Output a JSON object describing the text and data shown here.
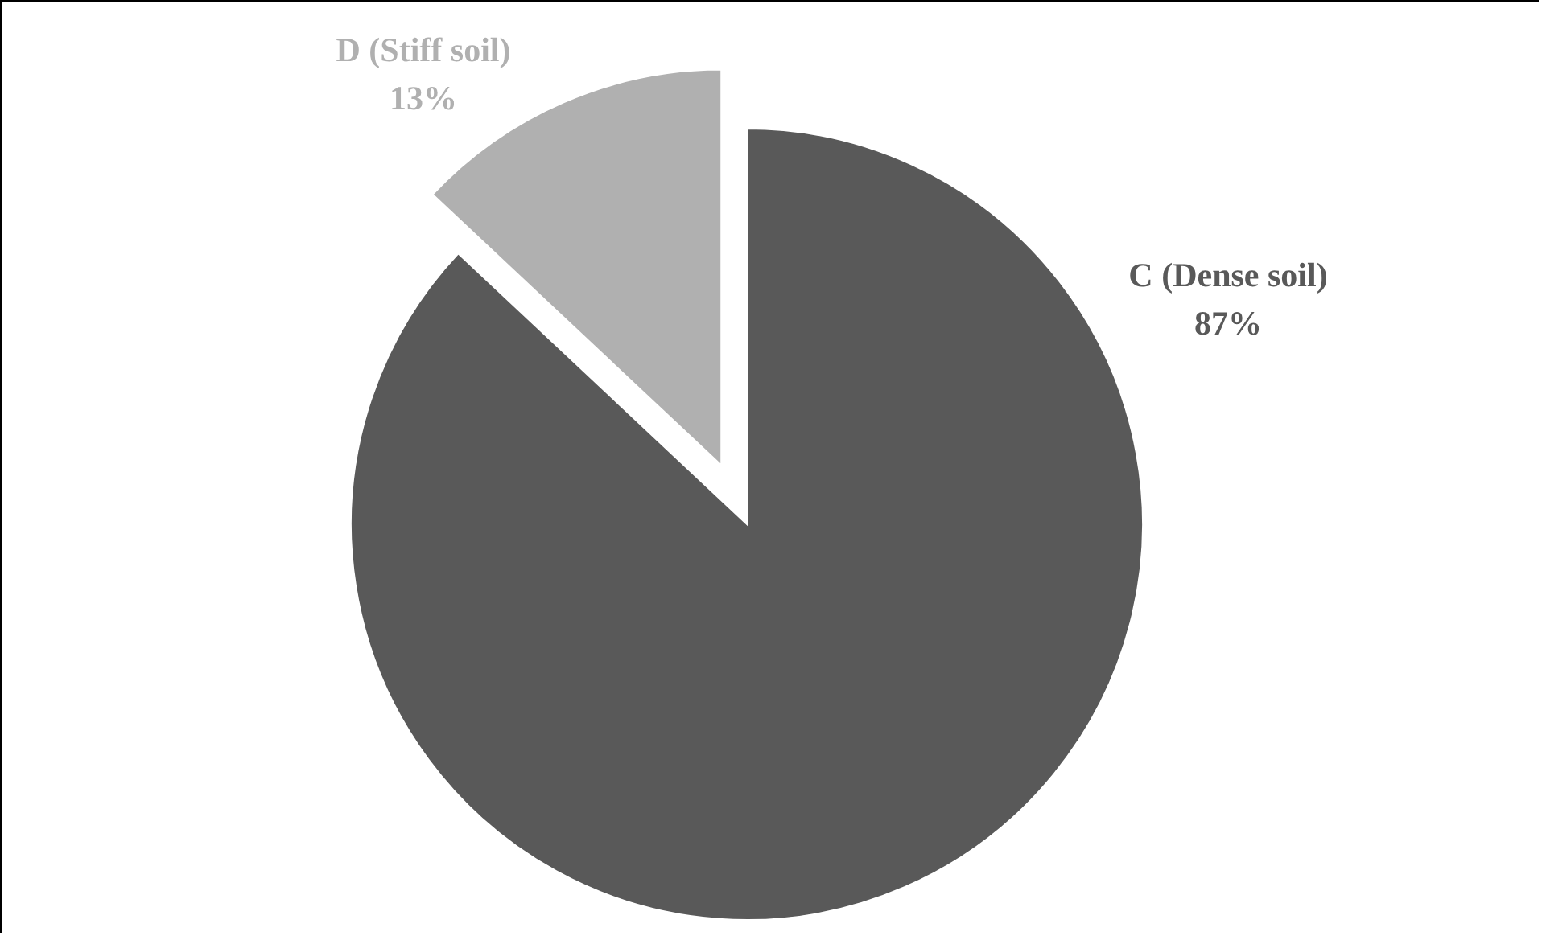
{
  "chart_data": {
    "type": "pie",
    "categories": [
      "C (Dense soil)",
      "D (Stiff soil)"
    ],
    "values": [
      87,
      13
    ],
    "colors": [
      "#595959",
      "#b0b0b0"
    ],
    "value_labels": [
      "87%",
      "13%"
    ]
  }
}
